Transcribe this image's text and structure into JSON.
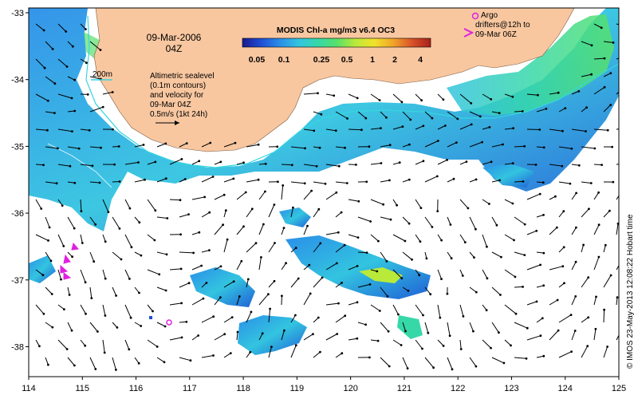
{
  "map": {
    "date_line1": "09-Mar-2006",
    "date_line2": "04Z",
    "colorbar": {
      "title": "MODIS Chl-a mg/m3 v6.4 OC3",
      "ticks": [
        "0.05",
        "0.1",
        "0.25",
        "0.5",
        "1",
        "2",
        "4"
      ],
      "colors": [
        "#1a1a8c",
        "#1f4fd6",
        "#2a8fe8",
        "#33c4e0",
        "#36d8a8",
        "#57e06b",
        "#b9ea3a",
        "#f2e22a",
        "#f0a52a",
        "#d8532a",
        "#a8201a"
      ]
    },
    "contour_label": "200m",
    "legend_lines": [
      "Altimetric sealevel",
      "(0.1m contours)",
      "and velocity for",
      "09-Mar 04Z",
      "0.5m/s (1kt 24h)"
    ],
    "argo_lines": [
      "Argo",
      "drifters@12h to",
      "09-Mar 06Z"
    ],
    "credit": "© IMOS 23-May-2013 12:08:22 Hobart time",
    "x_ticks": [
      "114",
      "115",
      "116",
      "117",
      "118",
      "119",
      "120",
      "121",
      "122",
      "123",
      "124",
      "125"
    ],
    "y_ticks": [
      "-33",
      "-34",
      "-35",
      "-36",
      "-37",
      "-38"
    ],
    "colors": {
      "land": "#f8c7a0",
      "ocean": "#ffffff",
      "contour": "#35d6e0",
      "argo": "#e020e0",
      "arrow": "#000000"
    }
  }
}
